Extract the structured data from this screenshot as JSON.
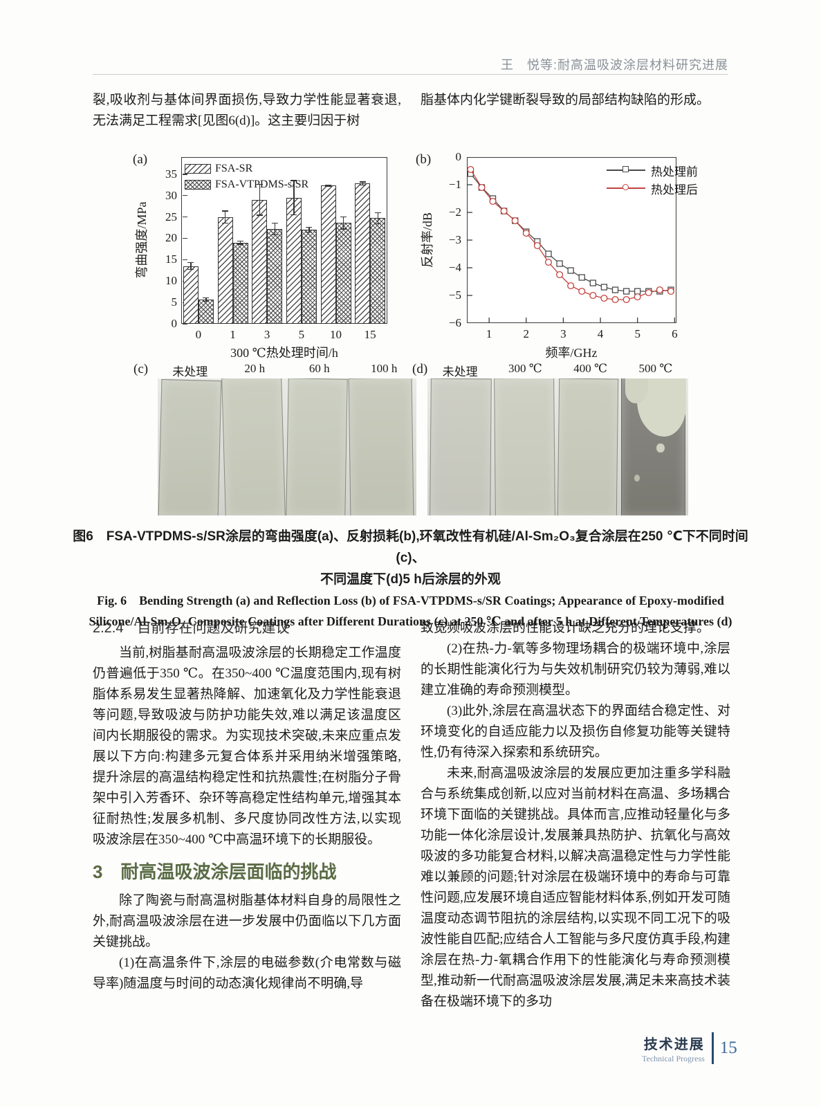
{
  "header": {
    "running_title": "王　悦等:耐高温吸波涂层材料研究进展"
  },
  "intro": {
    "left": "裂,吸收剂与基体间界面损伤,导致力学性能显著衰退,无法满足工程需求[见图6(d)]。这主要归因于树",
    "right": "脂基体内化学键断裂导致的局部结构缺陷的形成。"
  },
  "chart_data": [
    {
      "type": "bar",
      "panel_label": "(a)",
      "xlabel": "300 ℃热处理时间/h",
      "ylabel": "弯曲强度/MPa",
      "ylim": [
        0,
        39
      ],
      "yticks": [
        0,
        5,
        10,
        15,
        20,
        25,
        30,
        35
      ],
      "categories": [
        "0",
        "1",
        "3",
        "5",
        "10",
        "15"
      ],
      "series": [
        {
          "name": "FSA-SR",
          "hatch": "diagonal",
          "values": [
            13.5,
            25.0,
            29.0,
            29.5,
            32.3,
            32.8
          ],
          "errors": [
            0.8,
            1.4,
            3.6,
            4.0,
            0.2,
            0.4
          ]
        },
        {
          "name": "FSA-VTPDMS-s/SR",
          "hatch": "cross",
          "values": [
            5.7,
            19.0,
            22.2,
            22.0,
            23.6,
            24.7
          ],
          "errors": [
            0.4,
            0.4,
            1.4,
            0.6,
            1.4,
            1.3
          ]
        }
      ],
      "legend_position": "top-left",
      "grid": false
    },
    {
      "type": "line",
      "panel_label": "(b)",
      "xlabel": "频率/GHz",
      "ylabel": "反射率/dB",
      "xlim": [
        0.4,
        6.05
      ],
      "ylim": [
        -6,
        0
      ],
      "xticks": [
        1,
        2,
        3,
        4,
        5,
        6
      ],
      "yticks": [
        0,
        -1,
        -2,
        -3,
        -4,
        -5,
        -6
      ],
      "series": [
        {
          "name": "热处理前",
          "color": "#4a4a4a",
          "marker": "square",
          "x": [
            0.5,
            0.8,
            1.1,
            1.4,
            1.7,
            2.0,
            2.3,
            2.6,
            2.9,
            3.2,
            3.5,
            3.8,
            4.1,
            4.4,
            4.7,
            5.0,
            5.3,
            5.6,
            5.9
          ],
          "y": [
            -0.6,
            -1.1,
            -1.5,
            -1.95,
            -2.3,
            -2.7,
            -3.05,
            -3.5,
            -3.85,
            -4.1,
            -4.35,
            -4.55,
            -4.7,
            -4.8,
            -4.85,
            -4.85,
            -4.85,
            -4.85,
            -4.8
          ]
        },
        {
          "name": "热处理后",
          "color": "#c2443e",
          "marker": "circle",
          "x": [
            0.5,
            0.8,
            1.1,
            1.4,
            1.7,
            2.0,
            2.3,
            2.6,
            2.9,
            3.2,
            3.5,
            3.8,
            4.1,
            4.4,
            4.7,
            5.0,
            5.3,
            5.6,
            5.9
          ],
          "y": [
            -0.45,
            -1.1,
            -1.6,
            -1.95,
            -2.3,
            -2.75,
            -3.2,
            -3.8,
            -4.25,
            -4.65,
            -4.85,
            -5.0,
            -5.1,
            -5.15,
            -5.15,
            -5.05,
            -4.9,
            -4.8,
            -4.85
          ]
        }
      ],
      "legend_position": "top-right",
      "grid": false
    }
  ],
  "figure": {
    "panel_c_label": "(c)",
    "panel_d_label": "(d)",
    "panel_c_labels": [
      "未处理",
      "20 h",
      "60 h",
      "100 h"
    ],
    "panel_d_labels": [
      "未处理",
      "300 ℃",
      "400 ℃",
      "500 ℃"
    ],
    "caption_cn_1": "图6　FSA-VTPDMS-s/SR涂层的弯曲强度(a)、反射损耗(b),环氧改性有机硅/Al-Sm₂O₃复合涂层在250 ℃下不同时间(c)、",
    "caption_cn_2": "不同温度下(d)5 h后涂层的外观",
    "caption_en_1": "Fig. 6　Bending Strength (a) and Reflection Loss (b) of FSA-VTPDMS-s/SR Coatings; Appearance of Epoxy-modified",
    "caption_en_2": "Silicone/Al-Sm₂O₃ Composite Coatings after Different Durations (c) at 250 ℃ and after 5 h at Different Temperatures (d)"
  },
  "body": {
    "left": {
      "h224": "2.2.4　目前存在问题及研究建议",
      "p1": "当前,树脂基耐高温吸波涂层的长期稳定工作温度仍普遍低于350 ℃。在350~400 ℃温度范围内,现有树脂体系易发生显著热降解、加速氧化及力学性能衰退等问题,导致吸波与防护功能失效,难以满足该温度区间内长期服役的需求。为实现技术突破,未来应重点发展以下方向:构建多元复合体系并采用纳米增强策略,提升涂层的高温结构稳定性和抗热震性;在树脂分子骨架中引入芳香环、杂环等高稳定性结构单元,增强其本征耐热性;发展多机制、多尺度协同改性方法,以实现吸波涂层在350~400 ℃中高温环境下的长期服役。",
      "h3_num": "3",
      "h3_title": "耐高温吸波涂层面临的挑战",
      "p2": "除了陶瓷与耐高温树脂基体材料自身的局限性之外,耐高温吸波涂层在进一步发展中仍面临以下几方面关键挑战。",
      "p3": "(1)在高温条件下,涂层的电磁参数(介电常数与磁导率)随温度与时间的动态演化规律尚不明确,导"
    },
    "right": {
      "p0": "致宽频吸波涂层的性能设计缺乏充分的理论支撑。",
      "p1": "(2)在热-力-氧等多物理场耦合的极端环境中,涂层的长期性能演化行为与失效机制研究仍较为薄弱,难以建立准确的寿命预测模型。",
      "p2": "(3)此外,涂层在高温状态下的界面结合稳定性、对环境变化的自适应能力以及损伤自修复功能等关键特性,仍有待深入探索和系统研究。",
      "p3": "未来,耐高温吸波涂层的发展应更加注重多学科融合与系统集成创新,以应对当前材料在高温、多场耦合环境下面临的关键挑战。具体而言,应推动轻量化与多功能一体化涂层设计,发展兼具热防护、抗氧化与高效吸波的多功能复合材料,以解决高温稳定性与力学性能难以兼顾的问题;针对涂层在极端环境中的寿命与可靠性问题,应发展环境自适应智能材料体系,例如开发可随温度动态调节阻抗的涂层结构,以实现不同工况下的吸波性能自匹配;应结合人工智能与多尺度仿真手段,构建涂层在热-力-氧耦合作用下的性能演化与寿命预测模型,推动新一代耐高温吸波涂层发展,满足未来高技术装备在极端环境下的多功"
    }
  },
  "footer": {
    "section_cn": "技术进展",
    "section_en": "Technical Progress",
    "page_number": "15"
  },
  "colors": {
    "heading_green": "#5a6b45",
    "header_gray": "#8a9198",
    "series_red": "#c2443e",
    "series_black": "#4a4a4a",
    "footer_navy": "#2b4a6b"
  }
}
